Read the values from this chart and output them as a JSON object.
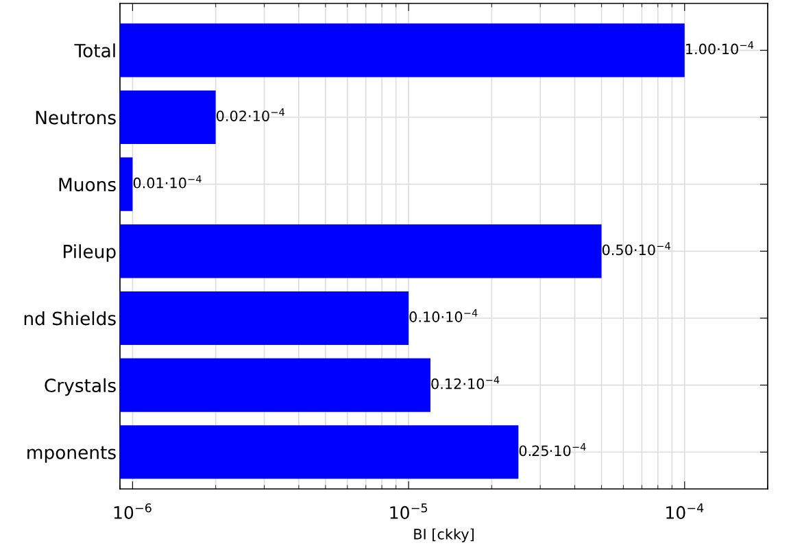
{
  "chart_data": {
    "type": "bar",
    "orientation": "horizontal",
    "log": "x",
    "xlabel": "BI [ckky]",
    "categories": [
      "Total",
      "Neutrons",
      "Muons",
      "Pileup",
      "nd Shields",
      "Crystals",
      "mponents"
    ],
    "values": [
      0.0001,
      2e-06,
      1e-06,
      5e-05,
      1e-05,
      1.2e-05,
      2.5e-05
    ],
    "color": "#0000ff",
    "value_labels": [
      "1.00·10$^{−4}$",
      "0.02·10$^{−4}$",
      "0.01·10$^{−4}$",
      "0.50·10$^{−4}$",
      "0.10·10$^{−4}$",
      "0.12·10$^{−4}$",
      "0.25·10$^{−4}$"
    ],
    "xlim": [
      9e-07,
      0.0002
    ],
    "xticks": [
      {
        "value": 1e-06,
        "label": "10$^{−6}$"
      },
      {
        "value": 1e-05,
        "label": "10$^{−5}$"
      },
      {
        "value": 0.0001,
        "label": "10$^{−4}$"
      }
    ],
    "grid": true
  }
}
